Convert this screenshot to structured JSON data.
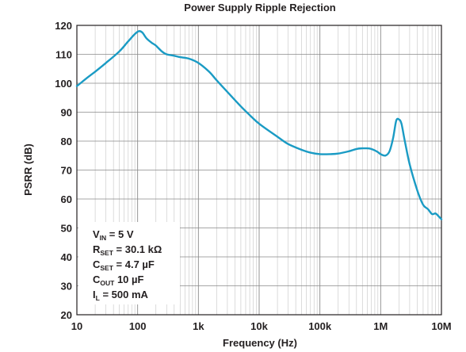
{
  "chart_data": {
    "type": "line",
    "title": "Power Supply Ripple Rejection",
    "xlabel": "Frequency (Hz)",
    "ylabel": "PSRR (dB)",
    "x_scale": "log",
    "xlim": [
      10,
      10000000
    ],
    "ylim": [
      20,
      120
    ],
    "grid": true,
    "x_ticks": [
      {
        "value": 10,
        "label": "10"
      },
      {
        "value": 100,
        "label": "100"
      },
      {
        "value": 1000,
        "label": "1k"
      },
      {
        "value": 10000,
        "label": "10k"
      },
      {
        "value": 100000,
        "label": "100k"
      },
      {
        "value": 1000000,
        "label": "1M"
      },
      {
        "value": 10000000,
        "label": "10M"
      }
    ],
    "y_ticks": [
      {
        "value": 20,
        "label": "20"
      },
      {
        "value": 30,
        "label": "30"
      },
      {
        "value": 40,
        "label": "40"
      },
      {
        "value": 50,
        "label": "50"
      },
      {
        "value": 60,
        "label": "60"
      },
      {
        "value": 70,
        "label": "70"
      },
      {
        "value": 80,
        "label": "80"
      },
      {
        "value": 90,
        "label": "90"
      },
      {
        "value": 100,
        "label": "100"
      },
      {
        "value": 110,
        "label": "110"
      },
      {
        "value": 120,
        "label": "120"
      }
    ],
    "line_color": "#1a9bc4",
    "series": [
      {
        "x": [
          10,
          15,
          20,
          30,
          50,
          70,
          90,
          105,
          120,
          140,
          170,
          200,
          250,
          300,
          400,
          500,
          700,
          1000,
          1500,
          2000,
          3000,
          5000,
          7000,
          10000,
          20000,
          30000,
          50000,
          70000,
          100000,
          150000,
          200000,
          300000,
          400000,
          500000,
          600000,
          700000,
          800000,
          900000,
          1000000,
          1200000,
          1400000,
          1600000,
          1800000,
          2000000,
          2200000,
          2500000,
          3000000,
          4000000,
          5000000,
          6000000,
          7000000,
          8000000,
          9000000,
          10000000
        ],
        "y": [
          99,
          102,
          104,
          107,
          111,
          114.5,
          117,
          118,
          117.5,
          115.5,
          114,
          113,
          111,
          110,
          109.5,
          109,
          108.5,
          107,
          104,
          101,
          97,
          92,
          89,
          86,
          81.5,
          79,
          77,
          76,
          75.5,
          75.5,
          75.7,
          76.5,
          77.3,
          77.5,
          77.5,
          77.3,
          76.8,
          76.2,
          75.5,
          75,
          76.5,
          81,
          87,
          87.5,
          86,
          80,
          72,
          63,
          58,
          56.5,
          54.8,
          55,
          54,
          53
        ]
      }
    ]
  },
  "conditions": [
    {
      "main": "V",
      "sub": "IN",
      "rest": " = 5 V"
    },
    {
      "main": "R",
      "sub": "SET",
      "rest": " = 30.1 kΩ"
    },
    {
      "main": "C",
      "sub": "SET",
      "rest": " = 4.7 µF"
    },
    {
      "main": "C",
      "sub": "OUT",
      "rest": " 10 µF"
    },
    {
      "main": "I",
      "sub": "L",
      "rest": " = 500 mA"
    }
  ]
}
